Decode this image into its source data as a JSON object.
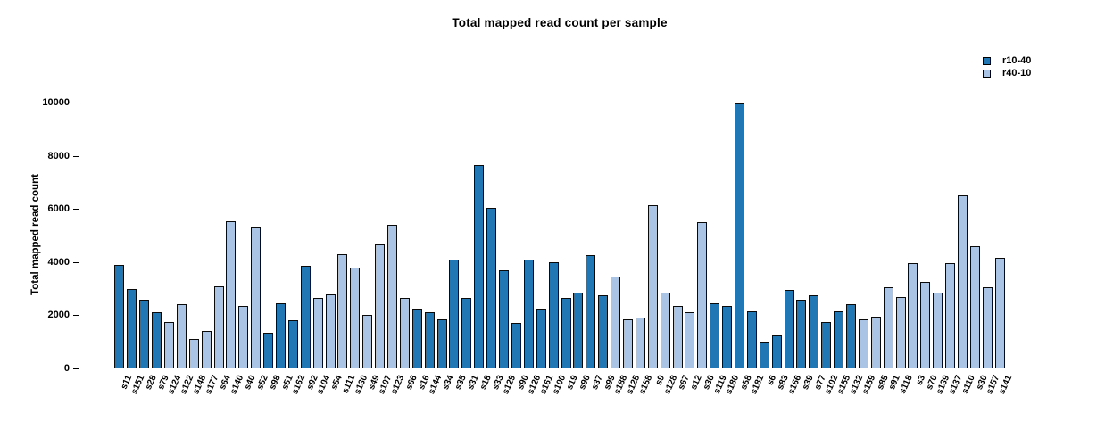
{
  "title": "Total mapped read count per sample",
  "y_axis": {
    "label": "Total mapped read count"
  },
  "legend": [
    {
      "label": "r10-40",
      "color": "#2077b4"
    },
    {
      "label": "r40-10",
      "color": "#aac4e6"
    }
  ],
  "chart_data": {
    "type": "bar",
    "title": "Total mapped read count per sample",
    "xlabel": "",
    "ylabel": "Total mapped read count",
    "ylim": [
      0,
      10000
    ],
    "yticks": [
      0,
      2000,
      4000,
      6000,
      8000,
      10000
    ],
    "grid": false,
    "legend_position": "top-right",
    "bar_border_color": "#0a0a0a",
    "series_colors": {
      "r10-40": "#2077b4",
      "r40-10": "#aac4e6"
    },
    "bars": [
      {
        "sample": "s11",
        "value": 3900,
        "series": "r10-40"
      },
      {
        "sample": "s151",
        "value": 3000,
        "series": "r10-40"
      },
      {
        "sample": "s28",
        "value": 2600,
        "series": "r10-40"
      },
      {
        "sample": "s79",
        "value": 2100,
        "series": "r10-40"
      },
      {
        "sample": "s124",
        "value": 1750,
        "series": "r40-10"
      },
      {
        "sample": "s122",
        "value": 2400,
        "series": "r40-10"
      },
      {
        "sample": "s148",
        "value": 1100,
        "series": "r40-10"
      },
      {
        "sample": "s177",
        "value": 1400,
        "series": "r40-10"
      },
      {
        "sample": "s64",
        "value": 3100,
        "series": "r40-10"
      },
      {
        "sample": "s140",
        "value": 5550,
        "series": "r40-10"
      },
      {
        "sample": "s40",
        "value": 2350,
        "series": "r40-10"
      },
      {
        "sample": "s52",
        "value": 5300,
        "series": "r40-10"
      },
      {
        "sample": "s98",
        "value": 1350,
        "series": "r10-40"
      },
      {
        "sample": "s51",
        "value": 2450,
        "series": "r10-40"
      },
      {
        "sample": "s162",
        "value": 1800,
        "series": "r10-40"
      },
      {
        "sample": "s92",
        "value": 3850,
        "series": "r10-40"
      },
      {
        "sample": "s104",
        "value": 2650,
        "series": "r40-10"
      },
      {
        "sample": "s54",
        "value": 2800,
        "series": "r40-10"
      },
      {
        "sample": "s111",
        "value": 4300,
        "series": "r40-10"
      },
      {
        "sample": "s130",
        "value": 3800,
        "series": "r40-10"
      },
      {
        "sample": "s49",
        "value": 2000,
        "series": "r40-10"
      },
      {
        "sample": "s107",
        "value": 4650,
        "series": "r40-10"
      },
      {
        "sample": "s123",
        "value": 5400,
        "series": "r40-10"
      },
      {
        "sample": "s66",
        "value": 2650,
        "series": "r40-10"
      },
      {
        "sample": "s16",
        "value": 2250,
        "series": "r10-40"
      },
      {
        "sample": "s144",
        "value": 2100,
        "series": "r10-40"
      },
      {
        "sample": "s34",
        "value": 1850,
        "series": "r10-40"
      },
      {
        "sample": "s35",
        "value": 4100,
        "series": "r10-40"
      },
      {
        "sample": "s31",
        "value": 2650,
        "series": "r10-40"
      },
      {
        "sample": "s18",
        "value": 7650,
        "series": "r10-40"
      },
      {
        "sample": "s33",
        "value": 6050,
        "series": "r10-40"
      },
      {
        "sample": "s129",
        "value": 3700,
        "series": "r10-40"
      },
      {
        "sample": "s90",
        "value": 1700,
        "series": "r10-40"
      },
      {
        "sample": "s126",
        "value": 4100,
        "series": "r10-40"
      },
      {
        "sample": "s161",
        "value": 2250,
        "series": "r10-40"
      },
      {
        "sample": "s100",
        "value": 4000,
        "series": "r10-40"
      },
      {
        "sample": "s19",
        "value": 2650,
        "series": "r10-40"
      },
      {
        "sample": "s96",
        "value": 2850,
        "series": "r10-40"
      },
      {
        "sample": "s37",
        "value": 4250,
        "series": "r10-40"
      },
      {
        "sample": "s99",
        "value": 2750,
        "series": "r10-40"
      },
      {
        "sample": "s188",
        "value": 3450,
        "series": "r40-10"
      },
      {
        "sample": "s125",
        "value": 1850,
        "series": "r40-10"
      },
      {
        "sample": "s158",
        "value": 1900,
        "series": "r40-10"
      },
      {
        "sample": "s9",
        "value": 6150,
        "series": "r40-10"
      },
      {
        "sample": "s128",
        "value": 2850,
        "series": "r40-10"
      },
      {
        "sample": "s67",
        "value": 2350,
        "series": "r40-10"
      },
      {
        "sample": "s12",
        "value": 2100,
        "series": "r40-10"
      },
      {
        "sample": "s36",
        "value": 5500,
        "series": "r40-10"
      },
      {
        "sample": "s119",
        "value": 2450,
        "series": "r10-40"
      },
      {
        "sample": "s180",
        "value": 2350,
        "series": "r10-40"
      },
      {
        "sample": "s58",
        "value": 9950,
        "series": "r10-40"
      },
      {
        "sample": "s181",
        "value": 2150,
        "series": "r10-40"
      },
      {
        "sample": "s6",
        "value": 1000,
        "series": "r10-40"
      },
      {
        "sample": "s83",
        "value": 1250,
        "series": "r10-40"
      },
      {
        "sample": "s166",
        "value": 2950,
        "series": "r10-40"
      },
      {
        "sample": "s39",
        "value": 2600,
        "series": "r10-40"
      },
      {
        "sample": "s77",
        "value": 2750,
        "series": "r10-40"
      },
      {
        "sample": "s102",
        "value": 1750,
        "series": "r10-40"
      },
      {
        "sample": "s155",
        "value": 2150,
        "series": "r10-40"
      },
      {
        "sample": "s132",
        "value": 2400,
        "series": "r10-40"
      },
      {
        "sample": "s159",
        "value": 1850,
        "series": "r40-10"
      },
      {
        "sample": "s85",
        "value": 1950,
        "series": "r40-10"
      },
      {
        "sample": "s91",
        "value": 3050,
        "series": "r40-10"
      },
      {
        "sample": "s118",
        "value": 2700,
        "series": "r40-10"
      },
      {
        "sample": "s3",
        "value": 3950,
        "series": "r40-10"
      },
      {
        "sample": "s70",
        "value": 3250,
        "series": "r40-10"
      },
      {
        "sample": "s139",
        "value": 2850,
        "series": "r40-10"
      },
      {
        "sample": "s137",
        "value": 3950,
        "series": "r40-10"
      },
      {
        "sample": "s110",
        "value": 6500,
        "series": "r40-10"
      },
      {
        "sample": "s30",
        "value": 4600,
        "series": "r40-10"
      },
      {
        "sample": "s157",
        "value": 3050,
        "series": "r40-10"
      },
      {
        "sample": "s141",
        "value": 4150,
        "series": "r40-10"
      }
    ]
  }
}
